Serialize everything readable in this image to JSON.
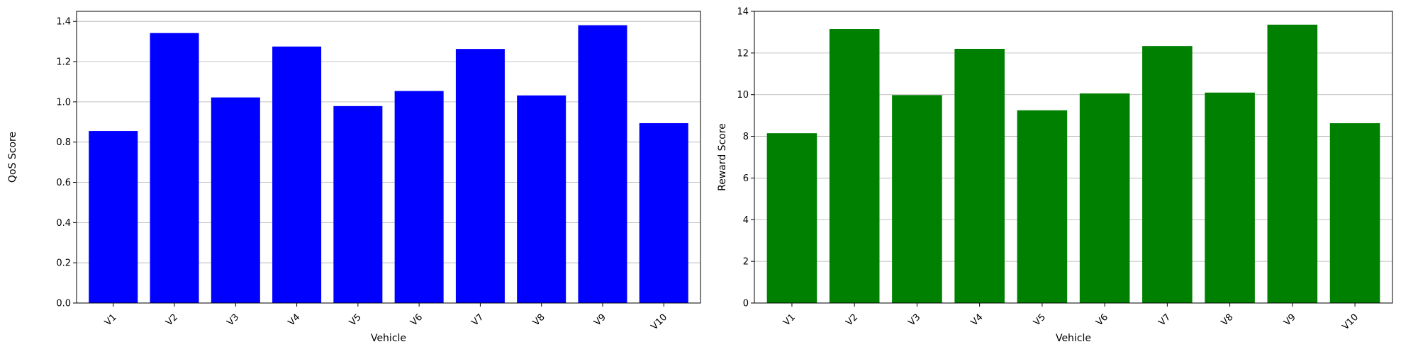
{
  "chart_data": [
    {
      "type": "bar",
      "categories": [
        "V1",
        "V2",
        "V3",
        "V4",
        "V5",
        "V6",
        "V7",
        "V8",
        "V9",
        "V10"
      ],
      "values": [
        0.855,
        1.342,
        1.022,
        1.275,
        0.979,
        1.054,
        1.263,
        1.032,
        1.381,
        0.894
      ],
      "xlabel": "Vehicle",
      "ylabel": "QoS Score",
      "ylim": [
        0,
        1.45
      ],
      "yticks": [
        0.0,
        0.2,
        0.4,
        0.6,
        0.8,
        1.0,
        1.2,
        1.4
      ],
      "ytick_labels": [
        "0.0",
        "0.2",
        "0.4",
        "0.6",
        "0.8",
        "1.0",
        "1.2",
        "1.4"
      ],
      "grid": "y",
      "color": "#0000ff"
    },
    {
      "type": "bar",
      "categories": [
        "V1",
        "V2",
        "V3",
        "V4",
        "V5",
        "V6",
        "V7",
        "V8",
        "V9",
        "V10"
      ],
      "values": [
        8.15,
        13.15,
        9.98,
        12.2,
        9.25,
        10.06,
        12.33,
        10.1,
        13.36,
        8.63
      ],
      "xlabel": "Vehicle",
      "ylabel": "Reward Score",
      "ylim": [
        0,
        14
      ],
      "yticks": [
        0,
        2,
        4,
        6,
        8,
        10,
        12,
        14
      ],
      "ytick_labels": [
        "0",
        "2",
        "4",
        "6",
        "8",
        "10",
        "12",
        "14"
      ],
      "grid": "y",
      "color": "#008000"
    }
  ]
}
